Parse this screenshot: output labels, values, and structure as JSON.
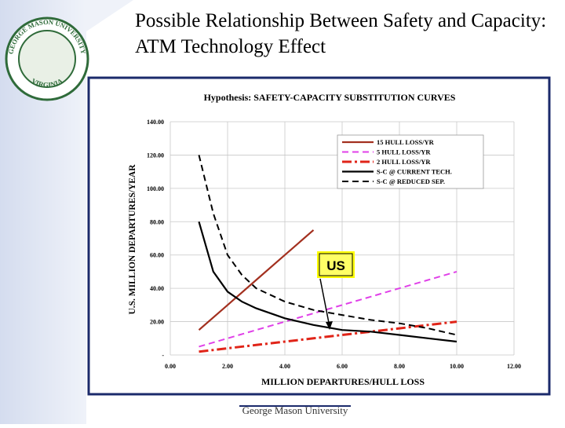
{
  "slide": {
    "title": "Possible Relationship Between Safety and Capacity: ATM Technology Effect",
    "footer": "George Mason University",
    "logo": {
      "name": "GEORGE MASON UNIVERSITY",
      "state": "VIRGINIA"
    }
  },
  "chart_data": {
    "type": "line",
    "title": "Hypothesis: SAFETY-CAPACITY SUBSTITUTION CURVES",
    "x_label": "MILLION DEPARTURES/HULL LOSS",
    "y_label": "U.S. MILLION DEPARTURES/YEAR",
    "xlim": [
      0,
      12
    ],
    "xticks": [
      {
        "value": 0,
        "label": "0.00"
      },
      {
        "value": 2,
        "label": "2.00"
      },
      {
        "value": 4,
        "label": "4.00"
      },
      {
        "value": 6,
        "label": "6.00"
      },
      {
        "value": 8,
        "label": "8.00"
      },
      {
        "value": 10,
        "label": "10.00"
      },
      {
        "value": 12,
        "label": "12.00"
      }
    ],
    "ylim": [
      0,
      140
    ],
    "yticks": [
      {
        "value": 0,
        "label": "-"
      },
      {
        "value": 20,
        "label": "20.00"
      },
      {
        "value": 40,
        "label": "40.00"
      },
      {
        "value": 60,
        "label": "60.00"
      },
      {
        "value": 80,
        "label": "80.00"
      },
      {
        "value": 100,
        "label": "100.00"
      },
      {
        "value": 120,
        "label": "120.00"
      },
      {
        "value": 140,
        "label": "140.00"
      }
    ],
    "grid": true,
    "legend": "top-right",
    "series": [
      {
        "name": "15 HULL LOSS/YR",
        "color": "#a3301f",
        "style": "solid",
        "x": [
          1,
          2,
          3,
          4,
          5
        ],
        "values": [
          15,
          30,
          45,
          60,
          75
        ]
      },
      {
        "name": "5 HULL LOSS/YR",
        "color": "#e040e8",
        "style": "dashed",
        "x": [
          1,
          2,
          3,
          4,
          5,
          6,
          7,
          8,
          9,
          10
        ],
        "values": [
          5,
          10,
          15,
          20,
          25,
          30,
          35,
          40,
          45,
          50
        ]
      },
      {
        "name": "2 HULL LOSS/YR",
        "color": "#e02418",
        "style": "dashdot",
        "x": [
          1,
          2,
          3,
          4,
          5,
          6,
          7,
          8,
          9,
          10
        ],
        "values": [
          2,
          4,
          6,
          8,
          10,
          12,
          14,
          16,
          18,
          20
        ]
      },
      {
        "name": "S-C @ CURRENT TECH.",
        "color": "#000000",
        "style": "solid",
        "x": [
          1,
          1.5,
          2,
          2.5,
          3,
          4,
          5,
          6,
          7,
          8,
          9,
          10
        ],
        "values": [
          80,
          50,
          38,
          32,
          28,
          22,
          18,
          15,
          14,
          12,
          10,
          8
        ]
      },
      {
        "name": "S-C @ REDUCED SEP.",
        "color": "#000000",
        "style": "dashed",
        "x": [
          1,
          1.5,
          2,
          2.5,
          3,
          4,
          5,
          6,
          7,
          8,
          9,
          10
        ],
        "values": [
          120,
          85,
          60,
          48,
          40,
          32,
          27,
          24,
          21,
          19,
          16,
          12
        ]
      }
    ],
    "annotation": "US"
  }
}
